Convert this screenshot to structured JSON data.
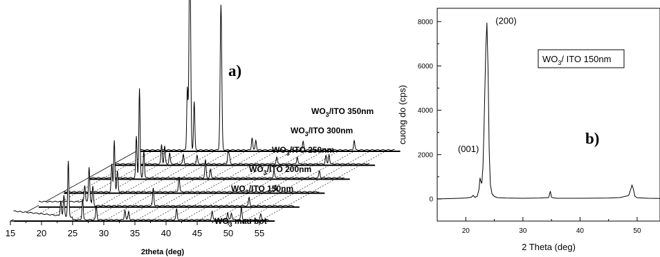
{
  "panel_a": {
    "label": "a)",
    "xlabel": "2theta (deg)",
    "x_ticks": [
      "15",
      "20",
      "25",
      "30",
      "35",
      "40",
      "45",
      "50",
      "55"
    ],
    "sample_labels": [
      {
        "main": "WO",
        "sub": "3",
        "rest": "/ITO 350nm"
      },
      {
        "main": "WO",
        "sub": "3",
        "rest": "/ITO 300nm"
      },
      {
        "main": "WO",
        "sub": "3",
        "rest": "/ITO 250nm"
      },
      {
        "main": "WO",
        "sub": "3",
        "rest": "/ITO 200nm"
      },
      {
        "main": "WO",
        "sub": "3",
        "rest": "/ITO 150nm"
      },
      {
        "main": "WO",
        "sub": "3",
        "rest": " mau bot"
      }
    ]
  },
  "panel_b": {
    "label": "b)",
    "legend": {
      "main": "WO",
      "sub": "3",
      "rest": "/ ITO 150nm"
    },
    "peak_labels": [
      {
        "text": "(001)",
        "x": 22.5,
        "y": 1000
      },
      {
        "text": "(200)",
        "x": 24.0,
        "y": 7900
      }
    ]
  },
  "chart_data": [
    {
      "type": "line",
      "title": "",
      "xlabel": "2theta (deg)",
      "ylabel": "",
      "xlim": [
        15,
        57
      ],
      "series": [
        {
          "name": "WO3/ITO 350nm",
          "peaks_2theta": [
            23.2,
            23.6,
            24.3,
            28.6,
            33.6,
            34.2,
            41.8,
            50.0
          ]
        },
        {
          "name": "WO3/ITO 300nm",
          "peaks_2theta": [
            23.1,
            23.6,
            24.4,
            26.6,
            28.8,
            33.8,
            34.0,
            41.6,
            44.9,
            49.5,
            50.0
          ]
        },
        {
          "name": "WO3/ITO 250nm",
          "peaks_2theta": [
            23.1,
            23.6,
            24.3,
            34.2,
            35.0,
            45.2,
            52.5
          ]
        },
        {
          "name": "WO3/ITO 200nm",
          "peaks_2theta": [
            23.2,
            23.6,
            24.1,
            34.0,
            49.5
          ]
        },
        {
          "name": "WO3/ITO 150nm",
          "peaks_2theta": [
            22.9,
            23.6,
            24.2,
            33.9,
            49.3
          ]
        },
        {
          "name": "WO3 mau bot",
          "peaks_2theta": [
            23.1,
            23.6,
            24.3,
            26.6,
            28.8,
            33.4,
            34.0,
            41.7,
            47.4,
            49.9,
            50.5,
            52.1,
            55.2
          ]
        }
      ]
    },
    {
      "type": "line",
      "title": "",
      "xlabel": "2 Theta (deg)",
      "ylabel": "cuong do (cps)",
      "xlim": [
        15,
        54
      ],
      "ylim": [
        -1000,
        8600
      ],
      "x_ticks": [
        20,
        30,
        40,
        50
      ],
      "y_ticks": [
        0,
        2000,
        4000,
        6000,
        8000
      ],
      "series": [
        {
          "name": "WO3/ ITO 150nm",
          "x": [
            15,
            18,
            20,
            21,
            21.3,
            21.6,
            22.0,
            22.3,
            22.5,
            22.6,
            22.8,
            23.0,
            23.2,
            23.5,
            23.7,
            23.9,
            24.1,
            24.3,
            24.6,
            25.0,
            25.5,
            27,
            30,
            33,
            34.5,
            34.8,
            35.0,
            35.3,
            36,
            40,
            45,
            47,
            48.5,
            48.9,
            49.1,
            49.3,
            49.6,
            50.0,
            52,
            54
          ],
          "y": [
            0,
            20,
            40,
            80,
            160,
            70,
            120,
            420,
            950,
            820,
            700,
            1450,
            3300,
            6800,
            7950,
            5800,
            2200,
            650,
            220,
            110,
            60,
            40,
            30,
            40,
            60,
            350,
            80,
            50,
            30,
            30,
            40,
            60,
            150,
            450,
            620,
            480,
            120,
            50,
            30,
            20
          ]
        }
      ]
    }
  ]
}
